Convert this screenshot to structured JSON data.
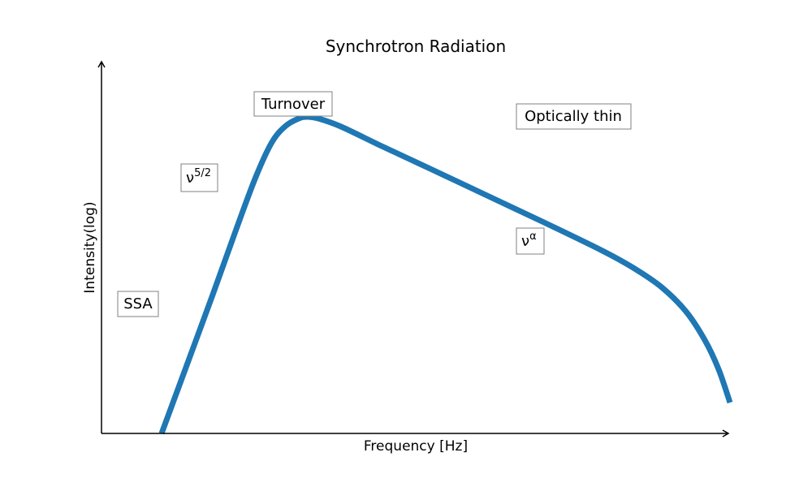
{
  "chart_data": {
    "type": "line",
    "title": "Synchrotron Radiation",
    "xlabel": "Frequency [Hz]",
    "ylabel": "Intensity(log)",
    "x_scale": "log",
    "y_scale": "log",
    "ticks_shown": false,
    "grid": false,
    "line_color": "#1f77b4",
    "annotations": [
      {
        "id": "turnover",
        "text": "Turnover"
      },
      {
        "id": "optically-thin",
        "text": "Optically thin"
      },
      {
        "id": "nu-52",
        "base": "ν",
        "sup": "5/2"
      },
      {
        "id": "nu-alpha",
        "base": "ν",
        "sup": "α"
      },
      {
        "id": "ssa",
        "text": "SSA"
      }
    ]
  }
}
